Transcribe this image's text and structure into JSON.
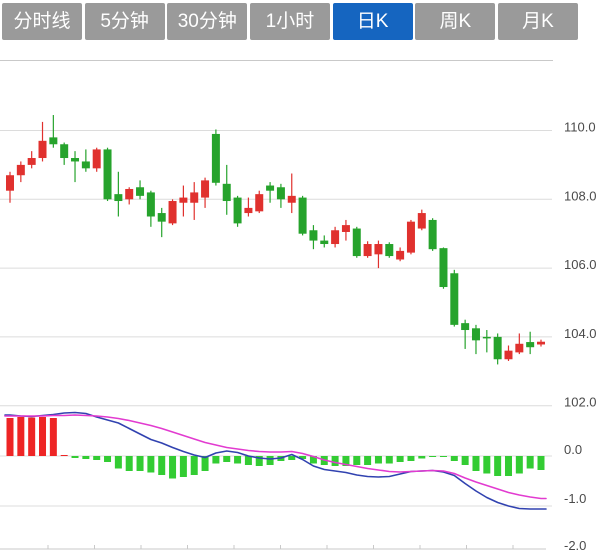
{
  "toolbar": {
    "tabs": [
      {
        "label": "分时线",
        "active": false
      },
      {
        "label": "5分钟",
        "active": false
      },
      {
        "label": "30分钟",
        "active": false
      },
      {
        "label": "1小时",
        "active": false
      },
      {
        "label": "日K",
        "active": true
      },
      {
        "label": "周K",
        "active": false
      },
      {
        "label": "月K",
        "active": false
      }
    ]
  },
  "colors": {
    "tab_active_bg": "#1565c0",
    "tab_inactive_bg": "#9a9a9a",
    "candle_up": "#e0312e",
    "candle_down": "#26a32c",
    "hist_up": "#ee2525",
    "hist_down": "#33cc33",
    "dif_line": "#3142b0",
    "dea_line": "#e23bd0",
    "gridline": "#dcdcdc",
    "border": "#c9c9c9",
    "axis_label": "#4a4a4a",
    "background": "#ffffff"
  },
  "chart_data": {
    "type": "candlestick",
    "panels": [
      "price",
      "macd"
    ],
    "price_axis": {
      "tick_labels": [
        "110.0",
        "108.0",
        "106.0",
        "104.0",
        "102.0"
      ],
      "ticks": [
        110.0,
        108.0,
        106.0,
        104.0,
        102.0
      ],
      "range": [
        101.8,
        112.0
      ],
      "grid": true,
      "position": "right"
    },
    "macd_axis": {
      "tick_labels": [
        "0.0",
        "-1.0",
        "-2.0"
      ],
      "ticks": [
        0.0,
        -1.0,
        -2.0
      ],
      "range": [
        -2.0,
        1.0
      ],
      "grid": true,
      "position": "right"
    },
    "candles_ohlc_format": [
      "open",
      "close",
      "high",
      "low"
    ],
    "candles": [
      [
        108.25,
        108.7,
        108.8,
        107.9
      ],
      [
        108.7,
        109.0,
        109.1,
        108.5
      ],
      [
        109.0,
        109.2,
        109.4,
        108.9
      ],
      [
        109.2,
        109.7,
        110.25,
        109.1
      ],
      [
        109.8,
        109.6,
        110.45,
        109.5
      ],
      [
        109.6,
        109.2,
        109.65,
        109.0
      ],
      [
        109.2,
        109.1,
        109.4,
        108.5
      ],
      [
        109.1,
        108.9,
        109.45,
        108.8
      ],
      [
        108.9,
        109.45,
        109.5,
        108.8
      ],
      [
        109.45,
        108.0,
        109.5,
        107.95
      ],
      [
        108.15,
        107.95,
        108.8,
        107.5
      ],
      [
        108.0,
        108.3,
        108.35,
        107.85
      ],
      [
        108.35,
        108.1,
        108.55,
        108.0
      ],
      [
        108.2,
        107.5,
        108.25,
        107.2
      ],
      [
        107.6,
        107.35,
        107.75,
        106.9
      ],
      [
        107.3,
        107.95,
        108.0,
        107.25
      ],
      [
        107.9,
        108.05,
        108.4,
        107.5
      ],
      [
        107.9,
        108.2,
        108.5,
        107.4
      ],
      [
        108.05,
        108.55,
        108.63,
        107.75
      ],
      [
        109.9,
        108.48,
        110.03,
        108.4
      ],
      [
        108.45,
        107.95,
        109.0,
        107.55
      ],
      [
        108.05,
        107.3,
        108.1,
        107.2
      ],
      [
        107.6,
        107.75,
        108.05,
        107.5
      ],
      [
        107.65,
        108.15,
        108.25,
        107.6
      ],
      [
        108.4,
        108.25,
        108.5,
        107.9
      ],
      [
        108.35,
        108.0,
        108.45,
        107.75
      ],
      [
        107.9,
        108.1,
        108.75,
        107.6
      ],
      [
        108.05,
        107.0,
        108.1,
        106.95
      ],
      [
        107.1,
        106.8,
        107.25,
        106.55
      ],
      [
        106.8,
        106.7,
        106.95,
        106.6
      ],
      [
        106.7,
        107.1,
        107.2,
        106.6
      ],
      [
        107.05,
        107.25,
        107.4,
        106.8
      ],
      [
        107.15,
        106.35,
        107.2,
        106.3
      ],
      [
        106.35,
        106.7,
        106.78,
        106.3
      ],
      [
        106.4,
        106.7,
        106.8,
        106.0
      ],
      [
        106.7,
        106.35,
        106.75,
        106.3
      ],
      [
        106.25,
        106.5,
        106.6,
        106.2
      ],
      [
        106.45,
        107.35,
        107.4,
        106.4
      ],
      [
        107.15,
        107.6,
        107.7,
        107.1
      ],
      [
        107.4,
        106.55,
        107.45,
        106.5
      ],
      [
        106.58,
        105.45,
        106.6,
        105.4
      ],
      [
        105.85,
        104.35,
        105.95,
        104.3
      ],
      [
        104.4,
        104.2,
        104.5,
        103.65
      ],
      [
        104.25,
        103.9,
        104.35,
        103.5
      ],
      [
        104.0,
        103.97,
        104.2,
        103.55
      ],
      [
        104.0,
        103.35,
        104.1,
        103.2
      ],
      [
        103.35,
        103.6,
        103.75,
        103.3
      ],
      [
        103.55,
        103.8,
        104.1,
        103.5
      ],
      [
        103.85,
        103.7,
        104.15,
        103.5
      ],
      [
        103.78,
        103.86,
        103.92,
        103.72
      ]
    ],
    "macd": {
      "histogram": [
        0.76,
        0.78,
        0.77,
        0.78,
        0.76,
        0.02,
        -0.04,
        -0.06,
        -0.08,
        -0.12,
        -0.25,
        -0.3,
        -0.3,
        -0.33,
        -0.38,
        -0.45,
        -0.42,
        -0.38,
        -0.3,
        -0.15,
        -0.12,
        -0.15,
        -0.18,
        -0.2,
        -0.18,
        -0.1,
        -0.08,
        -0.06,
        -0.15,
        -0.18,
        -0.2,
        -0.2,
        -0.18,
        -0.18,
        -0.15,
        -0.15,
        -0.12,
        -0.1,
        -0.05,
        -0.02,
        -0.02,
        -0.1,
        -0.18,
        -0.3,
        -0.35,
        -0.4,
        -0.4,
        -0.35,
        -0.25,
        -0.28
      ],
      "dif": [
        0.82,
        0.8,
        0.79,
        0.81,
        0.83,
        0.86,
        0.87,
        0.85,
        0.78,
        0.72,
        0.66,
        0.55,
        0.44,
        0.33,
        0.26,
        0.17,
        0.09,
        0.02,
        -0.03,
        0.06,
        0.1,
        0.07,
        0.0,
        -0.04,
        -0.06,
        -0.04,
        0.03,
        -0.07,
        -0.2,
        -0.27,
        -0.3,
        -0.33,
        -0.38,
        -0.41,
        -0.42,
        -0.41,
        -0.36,
        -0.31,
        -0.3,
        -0.29,
        -0.32,
        -0.39,
        -0.55,
        -0.7,
        -0.83,
        -0.93,
        -1.0,
        -1.05,
        -1.06,
        -1.06
      ],
      "dea": [
        0.8,
        0.8,
        0.8,
        0.8,
        0.81,
        0.81,
        0.82,
        0.81,
        0.8,
        0.78,
        0.75,
        0.71,
        0.66,
        0.61,
        0.55,
        0.48,
        0.41,
        0.34,
        0.27,
        0.22,
        0.17,
        0.14,
        0.11,
        0.09,
        0.08,
        0.08,
        0.09,
        0.05,
        -0.01,
        -0.08,
        -0.13,
        -0.17,
        -0.21,
        -0.25,
        -0.28,
        -0.31,
        -0.32,
        -0.31,
        -0.3,
        -0.29,
        -0.3,
        -0.35,
        -0.44,
        -0.52,
        -0.59,
        -0.66,
        -0.73,
        -0.78,
        -0.82,
        -0.85
      ]
    }
  }
}
